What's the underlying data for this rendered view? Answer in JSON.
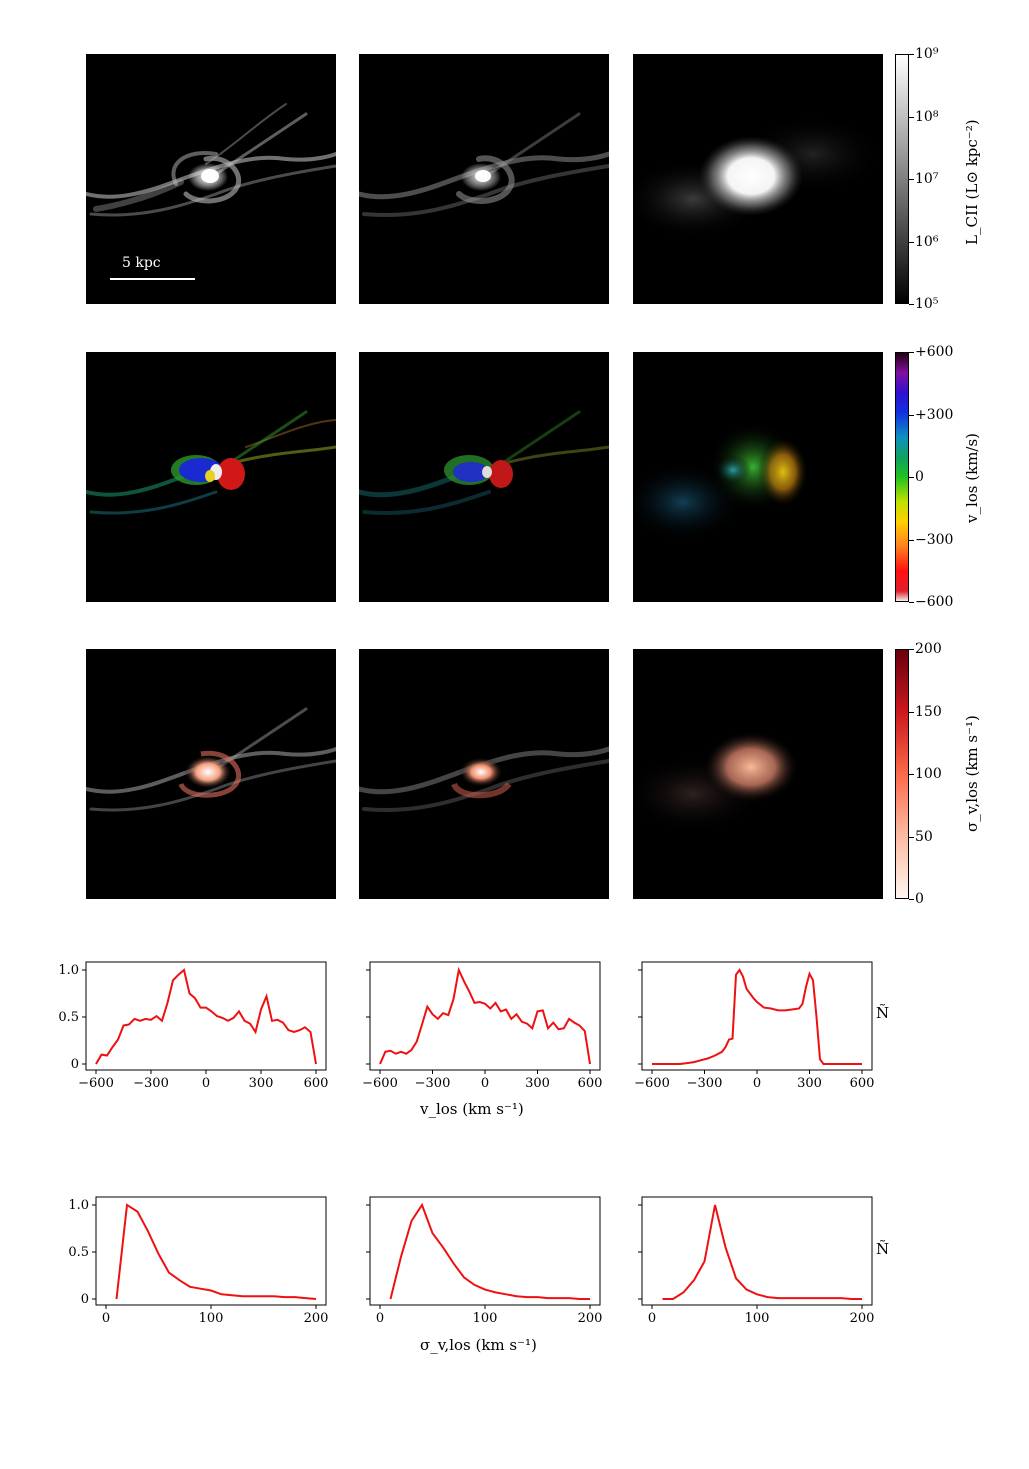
{
  "maps": {
    "scale_bar_label": "5 kpc",
    "colorbars": [
      {
        "label": "L_CII (L⊙ kpc⁻²)",
        "ticks": [
          "10⁹",
          "10⁸",
          "10⁷",
          "10⁶",
          "10⁵"
        ]
      },
      {
        "label": "v_los (km/s)",
        "ticks": [
          "+600",
          "+300",
          "0",
          "−300",
          "−600"
        ]
      },
      {
        "label": "σ_v,los (km s⁻¹)",
        "ticks": [
          "200",
          "150",
          "100",
          "50",
          "0"
        ]
      }
    ],
    "colors": {
      "background": "#000000",
      "luminosity": "#ffffff",
      "dispersion": "#f4a582"
    }
  },
  "chart_data": [
    {
      "type": "line",
      "panel": "vlos-left",
      "xlim": [
        -600,
        600
      ],
      "ylim": [
        0,
        1
      ],
      "xticks": [
        "−600",
        "−300",
        "0",
        "300",
        "600"
      ],
      "yticks": [
        "0",
        "0.5",
        "1.0"
      ],
      "x": [
        -600,
        -570,
        -540,
        -510,
        -480,
        -450,
        -420,
        -390,
        -360,
        -330,
        -300,
        -270,
        -240,
        -210,
        -180,
        -150,
        -120,
        -90,
        -60,
        -30,
        0,
        30,
        60,
        90,
        120,
        150,
        180,
        210,
        240,
        270,
        300,
        330,
        360,
        390,
        420,
        450,
        480,
        510,
        540,
        570,
        600
      ],
      "y": [
        0.0,
        0.1,
        0.09,
        0.18,
        0.26,
        0.41,
        0.42,
        0.48,
        0.46,
        0.48,
        0.47,
        0.51,
        0.46,
        0.65,
        0.89,
        0.95,
        1.0,
        0.75,
        0.7,
        0.6,
        0.6,
        0.56,
        0.51,
        0.49,
        0.46,
        0.49,
        0.56,
        0.46,
        0.43,
        0.34,
        0.58,
        0.72,
        0.46,
        0.47,
        0.44,
        0.36,
        0.34,
        0.36,
        0.39,
        0.34,
        0.0
      ],
      "color": "#ee1111"
    },
    {
      "type": "line",
      "panel": "vlos-middle",
      "xlim": [
        -600,
        600
      ],
      "ylim": [
        0,
        1
      ],
      "xticks": [
        "−600",
        "−300",
        "0",
        "300",
        "600"
      ],
      "x": [
        -600,
        -570,
        -540,
        -510,
        -480,
        -450,
        -420,
        -390,
        -360,
        -330,
        -300,
        -270,
        -240,
        -210,
        -180,
        -150,
        -120,
        -90,
        -60,
        -30,
        0,
        30,
        60,
        90,
        120,
        150,
        180,
        210,
        240,
        270,
        300,
        330,
        360,
        390,
        420,
        450,
        480,
        510,
        540,
        570,
        600
      ],
      "y": [
        0.0,
        0.13,
        0.14,
        0.11,
        0.13,
        0.11,
        0.15,
        0.24,
        0.42,
        0.61,
        0.53,
        0.48,
        0.54,
        0.52,
        0.69,
        1.0,
        0.88,
        0.77,
        0.65,
        0.66,
        0.64,
        0.59,
        0.65,
        0.56,
        0.58,
        0.48,
        0.53,
        0.45,
        0.43,
        0.38,
        0.56,
        0.57,
        0.38,
        0.44,
        0.37,
        0.38,
        0.48,
        0.44,
        0.41,
        0.35,
        0.0
      ],
      "color": "#ee1111"
    },
    {
      "type": "line",
      "panel": "vlos-right",
      "xlim": [
        -600,
        600
      ],
      "ylim": [
        0,
        1
      ],
      "xticks": [
        "−600",
        "−300",
        "0",
        "300",
        "600"
      ],
      "x": [
        -600,
        -560,
        -520,
        -480,
        -440,
        -400,
        -360,
        -320,
        -280,
        -240,
        -200,
        -180,
        -160,
        -140,
        -120,
        -100,
        -80,
        -60,
        -40,
        -20,
        0,
        40,
        80,
        120,
        160,
        200,
        240,
        260,
        280,
        300,
        320,
        340,
        360,
        380,
        420,
        460,
        500,
        540,
        580,
        600
      ],
      "y": [
        0.0,
        0.0,
        0.0,
        0.0,
        0.0,
        0.01,
        0.02,
        0.04,
        0.06,
        0.09,
        0.13,
        0.18,
        0.26,
        0.27,
        0.95,
        1.0,
        0.93,
        0.8,
        0.75,
        0.7,
        0.66,
        0.6,
        0.59,
        0.57,
        0.57,
        0.58,
        0.59,
        0.64,
        0.82,
        0.96,
        0.89,
        0.5,
        0.05,
        0.0,
        0.0,
        0.0,
        0.0,
        0.0,
        0.0,
        0.0
      ],
      "color": "#ee1111"
    },
    {
      "type": "line",
      "panel": "sigma-left",
      "xlim": [
        0,
        200
      ],
      "ylim": [
        0,
        1
      ],
      "xticks": [
        "0",
        "100",
        "200"
      ],
      "yticks": [
        "0",
        "0.5",
        "1.0"
      ],
      "x": [
        10,
        20,
        30,
        40,
        50,
        60,
        70,
        80,
        90,
        100,
        110,
        120,
        130,
        140,
        150,
        160,
        170,
        180,
        190,
        200
      ],
      "y": [
        0.0,
        1.0,
        0.93,
        0.72,
        0.48,
        0.28,
        0.2,
        0.13,
        0.11,
        0.09,
        0.05,
        0.04,
        0.03,
        0.03,
        0.03,
        0.03,
        0.02,
        0.02,
        0.01,
        0.0
      ],
      "color": "#ee1111"
    },
    {
      "type": "line",
      "panel": "sigma-middle",
      "xlim": [
        0,
        200
      ],
      "ylim": [
        0,
        1
      ],
      "xticks": [
        "0",
        "100",
        "200"
      ],
      "x": [
        10,
        20,
        30,
        40,
        50,
        60,
        70,
        80,
        90,
        100,
        110,
        120,
        130,
        140,
        150,
        160,
        170,
        180,
        190,
        200
      ],
      "y": [
        0.0,
        0.45,
        0.83,
        1.0,
        0.7,
        0.55,
        0.38,
        0.23,
        0.15,
        0.1,
        0.07,
        0.05,
        0.03,
        0.02,
        0.02,
        0.01,
        0.01,
        0.01,
        0.0,
        0.0
      ],
      "color": "#ee1111"
    },
    {
      "type": "line",
      "panel": "sigma-right",
      "xlim": [
        0,
        200
      ],
      "ylim": [
        0,
        1
      ],
      "xticks": [
        "0",
        "100",
        "200"
      ],
      "x": [
        10,
        20,
        30,
        40,
        50,
        60,
        70,
        80,
        90,
        100,
        110,
        120,
        130,
        140,
        150,
        160,
        170,
        180,
        190,
        200
      ],
      "y": [
        0.0,
        0.0,
        0.07,
        0.2,
        0.4,
        1.0,
        0.55,
        0.22,
        0.1,
        0.05,
        0.02,
        0.01,
        0.01,
        0.01,
        0.01,
        0.01,
        0.01,
        0.01,
        0.0,
        0.0
      ],
      "color": "#ee1111"
    }
  ],
  "axis_labels": {
    "vlos_xlabel": "v_los (km s⁻¹)",
    "sigma_xlabel": "σ_v,los (km s⁻¹)",
    "ylabel": "Ñ"
  }
}
